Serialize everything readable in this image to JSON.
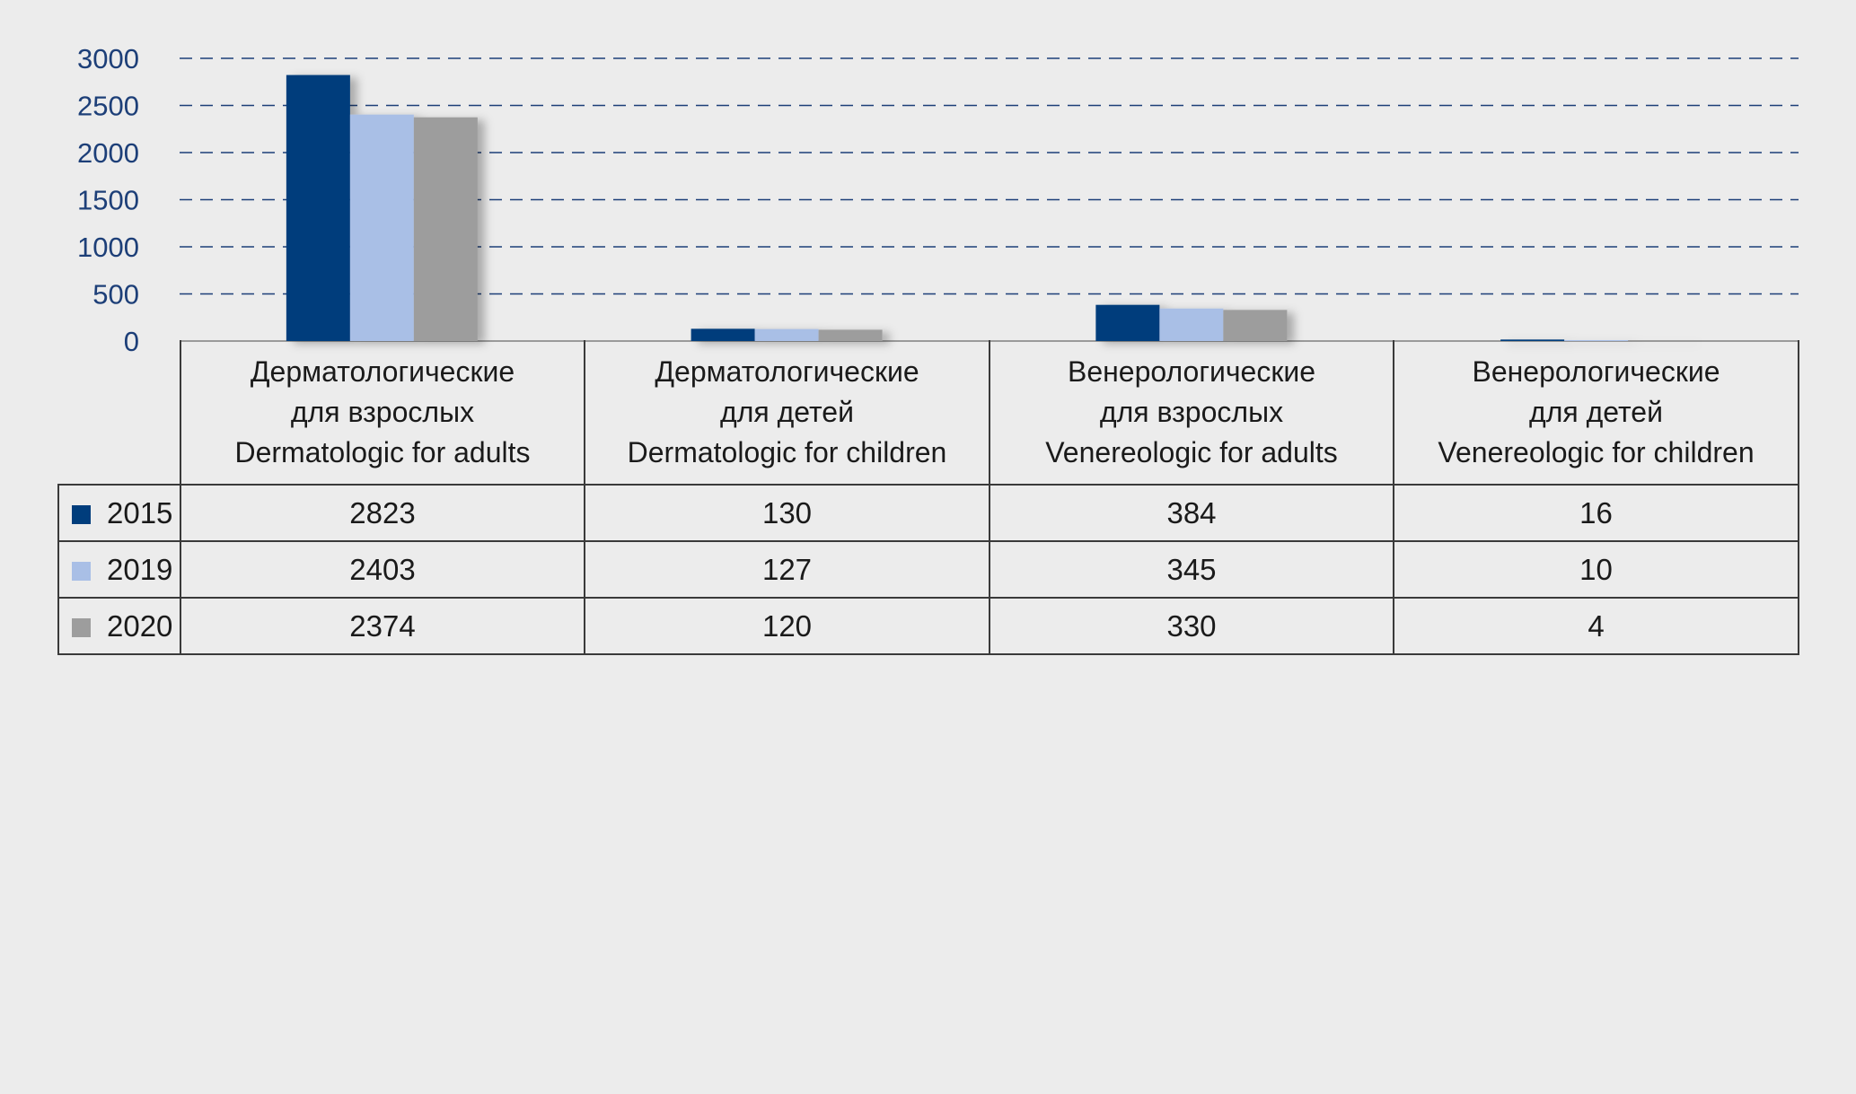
{
  "chart_data": {
    "type": "bar",
    "categories": [
      {
        "lines": [
          "Дерматологические",
          "для взрослых",
          "Dermatologic for adults"
        ]
      },
      {
        "lines": [
          "Дерматологические",
          "для детей",
          "Dermatologic for children"
        ]
      },
      {
        "lines": [
          "Венерологические",
          "для взрослых",
          "Venereologic for adults"
        ]
      },
      {
        "lines": [
          "Венерологические",
          "для детей",
          "Venereologic for children"
        ]
      }
    ],
    "series": [
      {
        "name": "2015",
        "color": "#003d7c",
        "values": [
          2823,
          130,
          384,
          16
        ]
      },
      {
        "name": "2019",
        "color": "#a9bfe6",
        "values": [
          2403,
          127,
          345,
          10
        ]
      },
      {
        "name": "2020",
        "color": "#9d9d9d",
        "values": [
          2374,
          120,
          330,
          4
        ]
      }
    ],
    "yticks": [
      "0",
      "500",
      "1000",
      "1500",
      "2000",
      "2500",
      "3000"
    ],
    "ylim": [
      0,
      3000
    ],
    "grid": "horizontal-dashed",
    "legend": "left of data table"
  }
}
